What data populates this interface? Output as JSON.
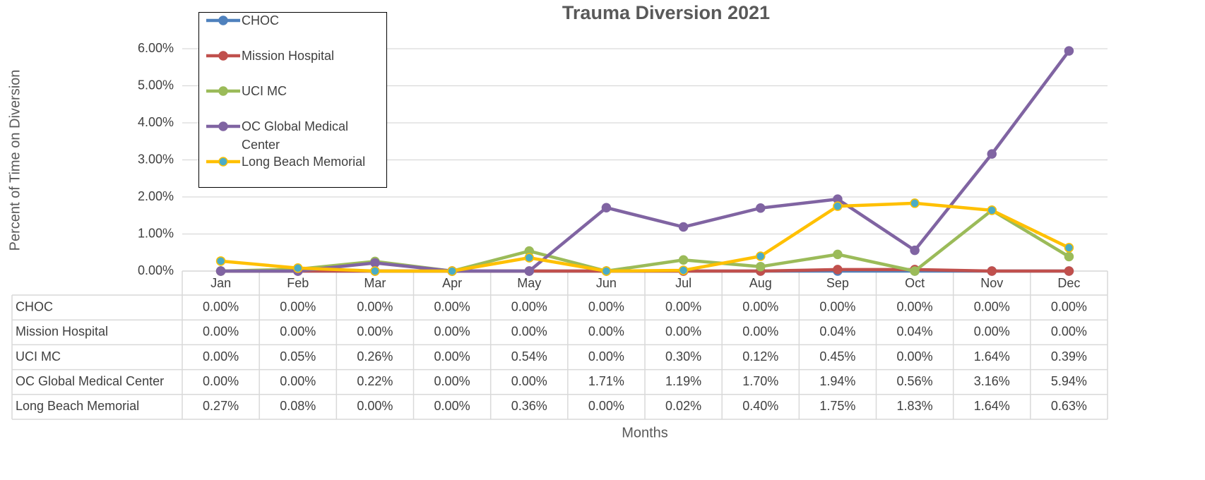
{
  "chart_data": {
    "type": "line",
    "title": "Trauma Diversion 2021",
    "ylabel": "Percent of Time on Diversion",
    "xlabel": "Months",
    "categories": [
      "Jan",
      "Feb",
      "Mar",
      "Apr",
      "May",
      "Jun",
      "Jul",
      "Aug",
      "Sep",
      "Oct",
      "Nov",
      "Dec"
    ],
    "ylim": [
      0,
      6
    ],
    "yticks": [
      {
        "value": 0,
        "label": "0.00%"
      },
      {
        "value": 1,
        "label": "1.00%"
      },
      {
        "value": 2,
        "label": "2.00%"
      },
      {
        "value": 3,
        "label": "3.00%"
      },
      {
        "value": 4,
        "label": "4.00%"
      },
      {
        "value": 5,
        "label": "5.00%"
      },
      {
        "value": 6,
        "label": "6.00%"
      }
    ],
    "grid": true,
    "legend": "upper left",
    "series": [
      {
        "name": "CHOC",
        "color": "#4f81bd",
        "marker_color": "#4f81bd",
        "values": [
          0,
          0,
          0,
          0,
          0,
          0,
          0,
          0,
          0,
          0,
          0,
          0
        ],
        "value_labels": [
          "0.00%",
          "0.00%",
          "0.00%",
          "0.00%",
          "0.00%",
          "0.00%",
          "0.00%",
          "0.00%",
          "0.00%",
          "0.00%",
          "0.00%",
          "0.00%"
        ]
      },
      {
        "name": "Mission Hospital",
        "color": "#c0504d",
        "marker_color": "#c0504d",
        "values": [
          0,
          0,
          0,
          0,
          0,
          0,
          0,
          0,
          0.04,
          0.04,
          0,
          0
        ],
        "value_labels": [
          "0.00%",
          "0.00%",
          "0.00%",
          "0.00%",
          "0.00%",
          "0.00%",
          "0.00%",
          "0.00%",
          "0.04%",
          "0.04%",
          "0.00%",
          "0.00%"
        ]
      },
      {
        "name": "UCI MC",
        "color": "#9bbb59",
        "marker_color": "#9bbb59",
        "values": [
          0,
          0.05,
          0.26,
          0,
          0.54,
          0,
          0.3,
          0.12,
          0.45,
          0,
          1.64,
          0.39
        ],
        "value_labels": [
          "0.00%",
          "0.05%",
          "0.26%",
          "0.00%",
          "0.54%",
          "0.00%",
          "0.30%",
          "0.12%",
          "0.45%",
          "0.00%",
          "1.64%",
          "0.39%"
        ]
      },
      {
        "name": "OC Global Medical Center",
        "color": "#8064a2",
        "marker_color": "#8064a2",
        "values": [
          0,
          0,
          0.22,
          0,
          0,
          1.71,
          1.19,
          1.7,
          1.94,
          0.56,
          3.16,
          5.94
        ],
        "value_labels": [
          "0.00%",
          "0.00%",
          "0.22%",
          "0.00%",
          "0.00%",
          "1.71%",
          "1.19%",
          "1.70%",
          "1.94%",
          "0.56%",
          "3.16%",
          "5.94%"
        ]
      },
      {
        "name": "Long Beach Memorial",
        "color": "#ffc000",
        "marker_color": "#4bacc6",
        "values": [
          0.27,
          0.08,
          0,
          0,
          0.36,
          0,
          0.02,
          0.4,
          1.75,
          1.83,
          1.64,
          0.63
        ],
        "value_labels": [
          "0.27%",
          "0.08%",
          "0.00%",
          "0.00%",
          "0.36%",
          "0.00%",
          "0.02%",
          "0.40%",
          "1.75%",
          "1.83%",
          "1.64%",
          "0.63%"
        ]
      }
    ]
  }
}
